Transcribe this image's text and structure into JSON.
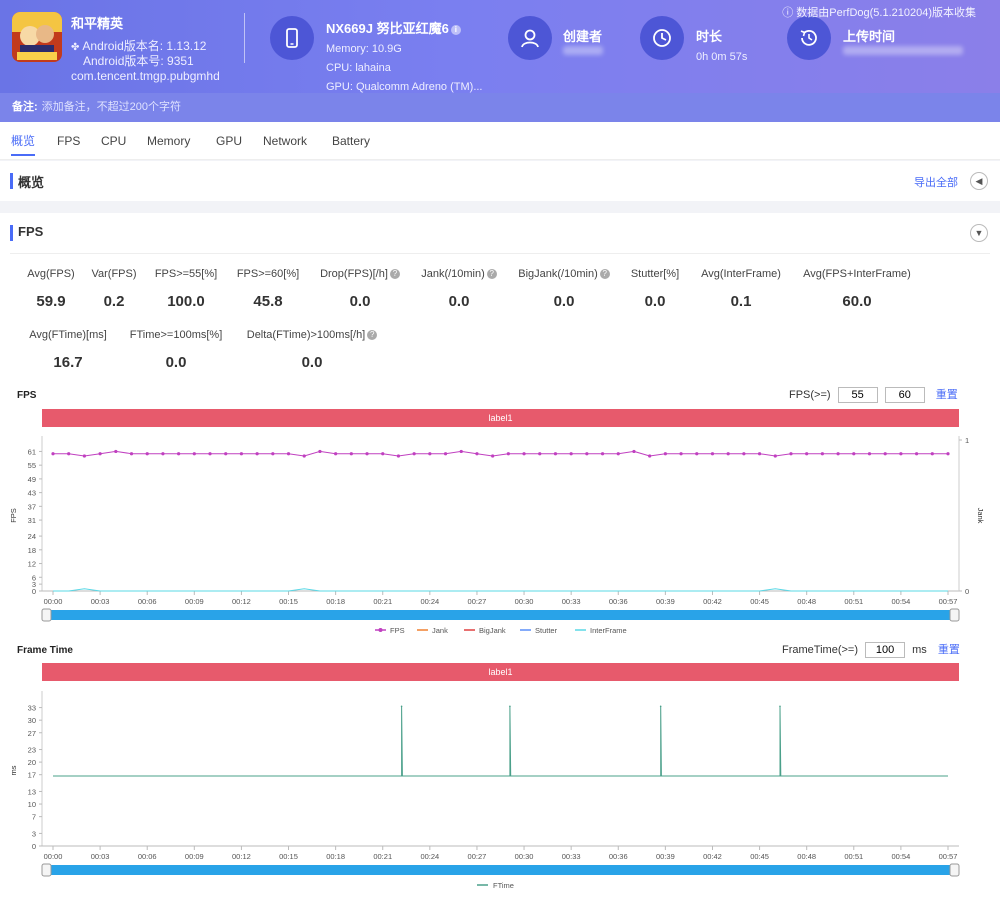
{
  "header": {
    "app_name": "和平精英",
    "android_version_name": "Android版本名: 1.13.12",
    "android_version_code": "Android版本号: 9351",
    "package": "com.tencent.tmgp.pubgmhd",
    "device_title": "NX669J 努比亚红魔6",
    "memory": "Memory: 10.9G",
    "cpu": "CPU: lahaina",
    "gpu": "GPU: Qualcomm Adreno (TM)...",
    "creator_label": "创建者",
    "duration_label": "时长",
    "duration_value": "0h 0m 57s",
    "upload_label": "上传时间",
    "source_note": "数据由PerfDog(5.1.210204)版本收集",
    "note_label": "备注:",
    "note_placeholder": "添加备注，不超过200个字符"
  },
  "tabs": [
    "概览",
    "FPS",
    "CPU",
    "Memory",
    "GPU",
    "Network",
    "Battery"
  ],
  "overview": {
    "title": "概览",
    "export_label": "导出全部"
  },
  "fps_section": {
    "title": "FPS",
    "stats": [
      {
        "label": "Avg(FPS)",
        "value": "59.9",
        "help": false
      },
      {
        "label": "Var(FPS)",
        "value": "0.2",
        "help": false
      },
      {
        "label": "FPS>=55[%]",
        "value": "100.0",
        "help": false
      },
      {
        "label": "FPS>=60[%]",
        "value": "45.8",
        "help": false
      },
      {
        "label": "Drop(FPS)[/h]",
        "value": "0.0",
        "help": true
      },
      {
        "label": "Jank(/10min)",
        "value": "0.0",
        "help": true
      },
      {
        "label": "BigJank(/10min)",
        "value": "0.0",
        "help": true
      },
      {
        "label": "Stutter[%]",
        "value": "0.0",
        "help": false
      },
      {
        "label": "Avg(InterFrame)",
        "value": "0.1",
        "help": false
      },
      {
        "label": "Avg(FPS+InterFrame)",
        "value": "60.0",
        "help": false
      },
      {
        "label": "Avg(FTime)[ms]",
        "value": "16.7",
        "help": false
      },
      {
        "label": "FTime>=100ms[%]",
        "value": "0.0",
        "help": false
      },
      {
        "label": "Delta(FTime)>100ms[/h]",
        "value": "0.0",
        "help": true
      }
    ]
  },
  "fps_chart": {
    "title": "FPS",
    "threshold_label": "FPS(>=)",
    "threshold_1": "55",
    "threshold_2": "60",
    "reset_label": "重置",
    "label_bar": "label1",
    "ylabel": "FPS",
    "ylabel_right": "Jank",
    "legend": [
      "FPS",
      "Jank",
      "BigJank",
      "Stutter",
      "InterFrame"
    ]
  },
  "ftime_chart": {
    "title": "Frame Time",
    "threshold_label": "FrameTime(>=)",
    "threshold": "100",
    "unit": "ms",
    "reset_label": "重置",
    "label_bar": "label1",
    "ylabel": "ms",
    "legend": [
      "FTime"
    ]
  },
  "colors": {
    "fps": "#c040c0",
    "jank": "#f08030",
    "bigjank": "#e04040",
    "stutter": "#5b8ff9",
    "interframe": "#5ad8e6",
    "ftime": "#4aa08a",
    "accent": "#4a6cf7"
  },
  "chart_data": [
    {
      "type": "line",
      "title": "FPS",
      "ylabel": "FPS",
      "xlabel": "",
      "x_ticks": [
        "00:00",
        "00:03",
        "00:06",
        "00:09",
        "00:12",
        "00:15",
        "00:18",
        "00:21",
        "00:24",
        "00:27",
        "00:30",
        "00:33",
        "00:36",
        "00:39",
        "00:42",
        "00:45",
        "00:48",
        "00:51",
        "00:54",
        "00:57"
      ],
      "y_ticks": [
        0,
        3,
        6,
        12,
        18,
        24,
        31,
        37,
        43,
        49,
        55,
        61
      ],
      "ylim": [
        0,
        66
      ],
      "y2lim": [
        0,
        1
      ],
      "y2_ticks": [
        0,
        1
      ],
      "x": [
        0,
        1,
        2,
        3,
        4,
        5,
        6,
        7,
        8,
        9,
        10,
        11,
        12,
        13,
        14,
        15,
        16,
        17,
        18,
        19,
        20,
        21,
        22,
        23,
        24,
        25,
        26,
        27,
        28,
        29,
        30,
        31,
        32,
        33,
        34,
        35,
        36,
        37,
        38,
        39,
        40,
        41,
        42,
        43,
        44,
        45,
        46,
        47,
        48,
        49,
        50,
        51,
        52,
        53,
        54,
        55,
        56,
        57
      ],
      "series": [
        {
          "name": "FPS",
          "values": [
            60,
            60,
            59,
            60,
            61,
            60,
            60,
            60,
            60,
            60,
            60,
            60,
            60,
            60,
            60,
            60,
            59,
            61,
            60,
            60,
            60,
            60,
            59,
            60,
            60,
            60,
            61,
            60,
            59,
            60,
            60,
            60,
            60,
            60,
            60,
            60,
            60,
            61,
            59,
            60,
            60,
            60,
            60,
            60,
            60,
            60,
            59,
            60,
            60,
            60,
            60,
            60,
            60,
            60,
            60,
            60,
            60,
            60
          ]
        },
        {
          "name": "InterFrame",
          "values": [
            0,
            0,
            1,
            0,
            0,
            0,
            0,
            0,
            0,
            0,
            0,
            0,
            0,
            0,
            0,
            0,
            1,
            0,
            0,
            0,
            0,
            0,
            0,
            0,
            0,
            0,
            0,
            0,
            0,
            0,
            0,
            0,
            0,
            0,
            0,
            0,
            0,
            0,
            0,
            0,
            0,
            0,
            0,
            0,
            0,
            0,
            1,
            0,
            0,
            0,
            0,
            0,
            0,
            0,
            0,
            0,
            0,
            0
          ]
        }
      ]
    },
    {
      "type": "line",
      "title": "Frame Time",
      "ylabel": "ms",
      "xlabel": "",
      "x_ticks": [
        "00:00",
        "00:03",
        "00:06",
        "00:09",
        "00:12",
        "00:15",
        "00:18",
        "00:21",
        "00:24",
        "00:27",
        "00:30",
        "00:33",
        "00:36",
        "00:39",
        "00:42",
        "00:45",
        "00:48",
        "00:51",
        "00:54",
        "00:57"
      ],
      "y_ticks": [
        0,
        3,
        7,
        10,
        13,
        17,
        20,
        23,
        27,
        30,
        33
      ],
      "ylim": [
        0,
        36
      ],
      "series": [
        {
          "name": "FTime",
          "baseline": 16.7,
          "spikes": [
            {
              "x": 22.2,
              "value": 33.3
            },
            {
              "x": 29.1,
              "value": 33.3
            },
            {
              "x": 38.7,
              "value": 33.3
            },
            {
              "x": 46.3,
              "value": 33.3
            }
          ]
        }
      ]
    }
  ]
}
